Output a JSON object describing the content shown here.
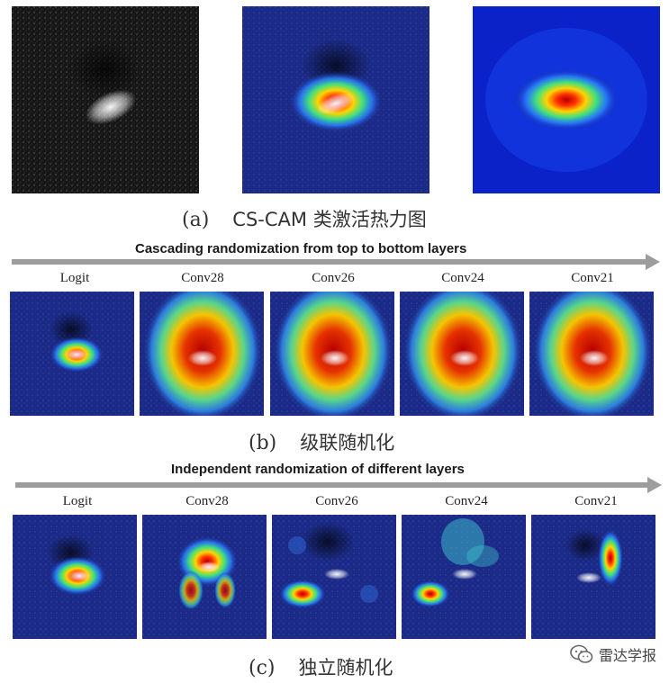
{
  "row_a": {
    "caption_label": "(a)",
    "caption_text": "CS-CAM 类激活热力图"
  },
  "row_b": {
    "banner": "Cascading randomization from top to bottom layers",
    "labels": [
      "Logit",
      "Conv28",
      "Conv26",
      "Conv24",
      "Conv21"
    ],
    "caption_label": "(b)",
    "caption_text": "级联随机化"
  },
  "row_c": {
    "banner": "Independent randomization of different layers",
    "labels": [
      "Logit",
      "Conv28",
      "Conv26",
      "Conv24",
      "Conv21"
    ],
    "caption_label": "(c)",
    "caption_text": "独立随机化"
  },
  "watermark": {
    "text": "雷达学报",
    "logo_icon": "wechat-icon"
  },
  "colors": {
    "heatmap_background": "#1a2a8c",
    "heatmap_hot": "#d40000",
    "arrow": "#9d9d9d"
  }
}
